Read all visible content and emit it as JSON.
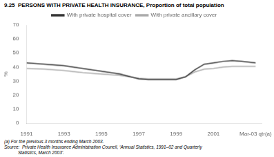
{
  "chart_data": {
    "type": "line",
    "title": "9.25  PERSONS WITH PRIVATE HEALTH INSURANCE, Proportion of total population",
    "y_label": "%",
    "x": [
      1991,
      1992,
      1993,
      1994,
      1995,
      1996,
      1997,
      1997.5,
      1998,
      1999,
      1999.5,
      2000,
      2000.5,
      2001,
      2001.5,
      2002,
      2002.5,
      2003.25
    ],
    "series": [
      {
        "name": "With private hospital cover",
        "color": "#333333",
        "values": [
          43,
          42,
          41,
          39,
          37,
          35,
          31.5,
          31,
          31,
          31,
          33,
          38,
          42,
          43,
          44,
          44.5,
          44,
          43
        ]
      },
      {
        "name": "With private ancillary cover",
        "color": "#aaaaaa",
        "values": [
          39,
          38.5,
          37.5,
          36,
          35,
          34,
          32,
          31.5,
          31.5,
          31.5,
          33,
          36.5,
          38.5,
          39,
          40,
          40.5,
          40.5,
          40.5
        ]
      }
    ],
    "xlim": [
      1991,
      2003.6
    ],
    "xticks": [
      1991,
      1993,
      1995,
      1997,
      1999,
      2001,
      {
        "value": 2003.25,
        "label": "Mar-03 qtr(a)"
      }
    ],
    "ylim": [
      0,
      70
    ],
    "yticks": [
      0,
      10,
      20,
      30,
      40,
      50,
      60,
      70
    ],
    "grid": false,
    "legend": "top",
    "annotations": [
      "(a) For the previous 3 months ending March 2003.",
      "Source:  Private Health Insurance Administration Council, ‘Annual Statistics, 1991–02 and Quarterly",
      "           Statistics, March 2003’."
    ]
  }
}
